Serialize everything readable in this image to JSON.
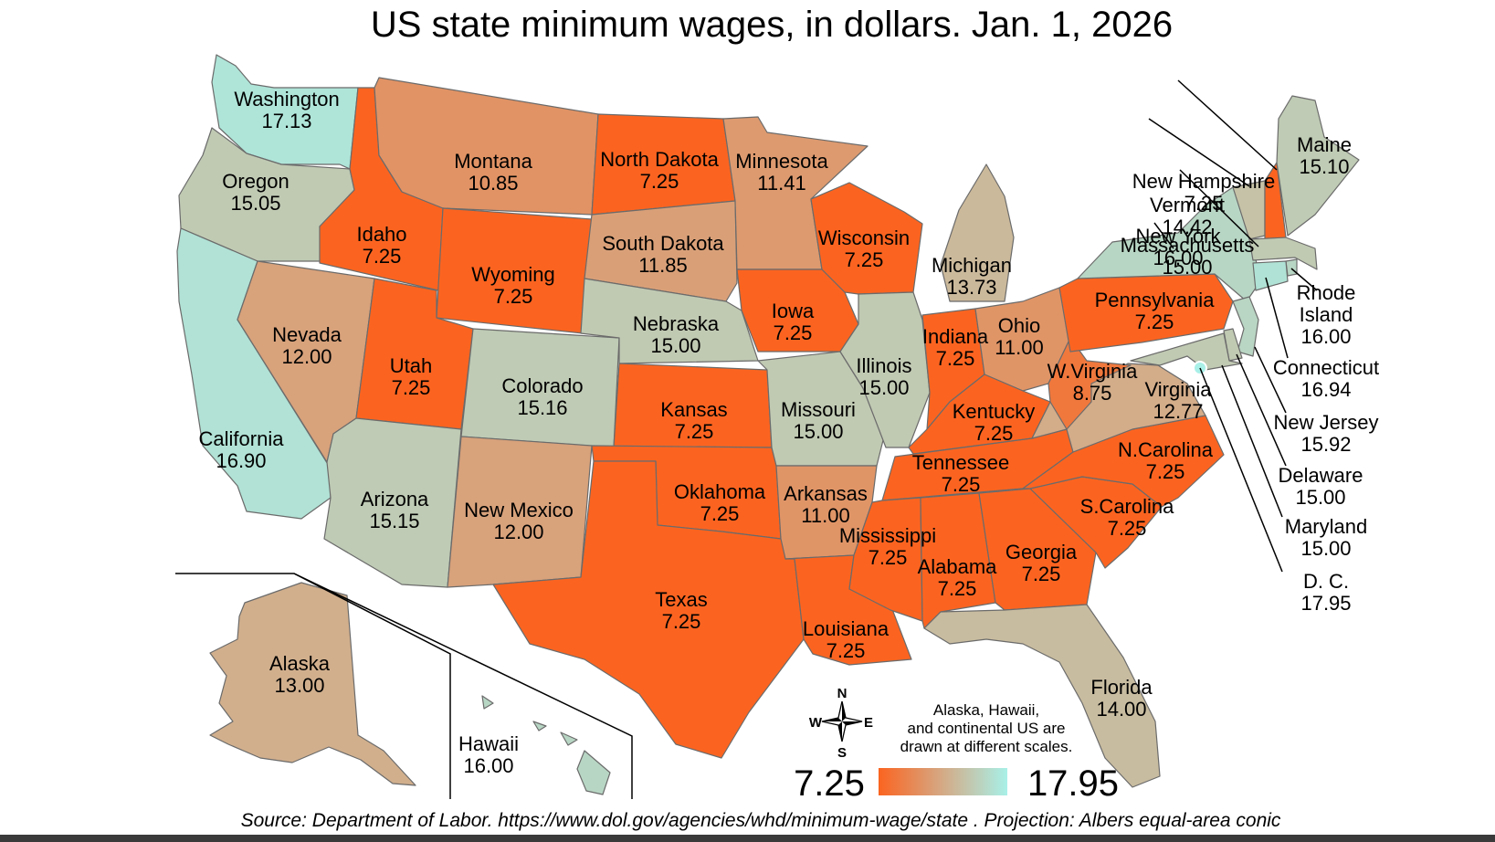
{
  "title": "US state minimum wages, in dollars. Jan. 1, 2026",
  "source": "Source: Department of Labor. https://www.dol.gov/agencies/whd/minimum-wage/state . Projection: Albers equal-area conic",
  "note_lines": [
    "Alaska, Hawaii,",
    "and continental US are",
    "drawn at different scales."
  ],
  "legend": {
    "min": "7.25",
    "max": "17.95",
    "min_value": 7.25,
    "max_value": 17.95,
    "colors": [
      "#fb6420",
      "#d4aa86",
      "#a8f0e8"
    ]
  },
  "compass": {
    "n": "N",
    "s": "S",
    "e": "E",
    "w": "W"
  },
  "states": [
    {
      "name": "Washington",
      "wage": "17.13",
      "value": 17.13
    },
    {
      "name": "Oregon",
      "wage": "15.05",
      "value": 15.05
    },
    {
      "name": "California",
      "wage": "16.90",
      "value": 16.9
    },
    {
      "name": "Nevada",
      "wage": "12.00",
      "value": 12.0
    },
    {
      "name": "Idaho",
      "wage": "7.25",
      "value": 7.25
    },
    {
      "name": "Montana",
      "wage": "10.85",
      "value": 10.85
    },
    {
      "name": "Wyoming",
      "wage": "7.25",
      "value": 7.25
    },
    {
      "name": "Utah",
      "wage": "7.25",
      "value": 7.25
    },
    {
      "name": "Arizona",
      "wage": "15.15",
      "value": 15.15
    },
    {
      "name": "Colorado",
      "wage": "15.16",
      "value": 15.16
    },
    {
      "name": "New Mexico",
      "wage": "12.00",
      "value": 12.0
    },
    {
      "name": "North Dakota",
      "wage": "7.25",
      "value": 7.25
    },
    {
      "name": "South Dakota",
      "wage": "11.85",
      "value": 11.85
    },
    {
      "name": "Nebraska",
      "wage": "15.00",
      "value": 15.0
    },
    {
      "name": "Kansas",
      "wage": "7.25",
      "value": 7.25
    },
    {
      "name": "Oklahoma",
      "wage": "7.25",
      "value": 7.25
    },
    {
      "name": "Texas",
      "wage": "7.25",
      "value": 7.25
    },
    {
      "name": "Minnesota",
      "wage": "11.41",
      "value": 11.41
    },
    {
      "name": "Iowa",
      "wage": "7.25",
      "value": 7.25
    },
    {
      "name": "Missouri",
      "wage": "15.00",
      "value": 15.0
    },
    {
      "name": "Arkansas",
      "wage": "11.00",
      "value": 11.0
    },
    {
      "name": "Louisiana",
      "wage": "7.25",
      "value": 7.25
    },
    {
      "name": "Wisconsin",
      "wage": "7.25",
      "value": 7.25
    },
    {
      "name": "Illinois",
      "wage": "15.00",
      "value": 15.0
    },
    {
      "name": "Michigan",
      "wage": "13.73",
      "value": 13.73
    },
    {
      "name": "Indiana",
      "wage": "7.25",
      "value": 7.25
    },
    {
      "name": "Ohio",
      "wage": "11.00",
      "value": 11.0
    },
    {
      "name": "Kentucky",
      "wage": "7.25",
      "value": 7.25
    },
    {
      "name": "Tennessee",
      "wage": "7.25",
      "value": 7.25
    },
    {
      "name": "Mississippi",
      "wage": "7.25",
      "value": 7.25
    },
    {
      "name": "Alabama",
      "wage": "7.25",
      "value": 7.25
    },
    {
      "name": "Georgia",
      "wage": "7.25",
      "value": 7.25
    },
    {
      "name": "Florida",
      "wage": "14.00",
      "value": 14.0
    },
    {
      "name": "S.Carolina",
      "wage": "7.25",
      "value": 7.25
    },
    {
      "name": "N.Carolina",
      "wage": "7.25",
      "value": 7.25
    },
    {
      "name": "Virginia",
      "wage": "12.77",
      "value": 12.77
    },
    {
      "name": "W.Virginia",
      "wage": "8.75",
      "value": 8.75
    },
    {
      "name": "Pennsylvania",
      "wage": "7.25",
      "value": 7.25
    },
    {
      "name": "New York",
      "wage": "16.00",
      "value": 16.0
    },
    {
      "name": "Vermont",
      "wage": "14.42",
      "value": 14.42
    },
    {
      "name": "New Hampshire",
      "wage": "7.25",
      "value": 7.25
    },
    {
      "name": "Maine",
      "wage": "15.10",
      "value": 15.1
    },
    {
      "name": "Massachusetts",
      "wage": "15.00",
      "value": 15.0
    },
    {
      "name": "Rhode",
      "name2": "Island",
      "wage": "16.00",
      "value": 16.0
    },
    {
      "name": "Connecticut",
      "wage": "16.94",
      "value": 16.94
    },
    {
      "name": "New Jersey",
      "wage": "15.92",
      "value": 15.92
    },
    {
      "name": "Delaware",
      "wage": "15.00",
      "value": 15.0
    },
    {
      "name": "Maryland",
      "wage": "15.00",
      "value": 15.0
    },
    {
      "name": "D. C.",
      "wage": "17.95",
      "value": 17.95
    },
    {
      "name": "Alaska",
      "wage": "13.00",
      "value": 13.0
    },
    {
      "name": "Hawaii",
      "wage": "16.00",
      "value": 16.0
    }
  ]
}
